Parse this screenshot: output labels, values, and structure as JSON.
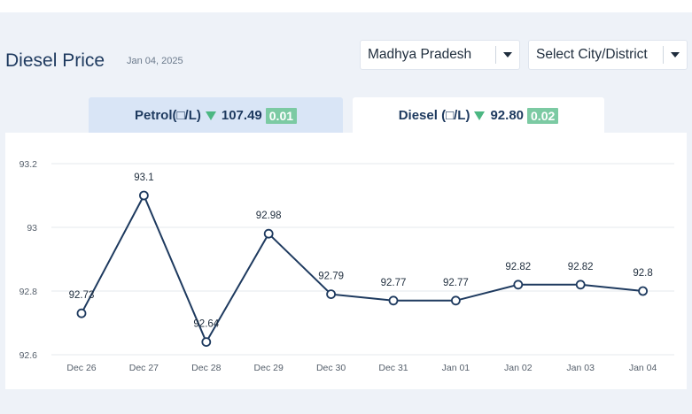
{
  "header": {
    "title": "Diesel Price",
    "date": "Jan 04, 2025",
    "state_select": {
      "value": "Madhya Pradesh"
    },
    "city_select": {
      "value": "Select City/District"
    }
  },
  "tabs": [
    {
      "label": "Petrol(□/L)",
      "price": "107.49",
      "change": "0.01",
      "active": false
    },
    {
      "label": "Diesel (□/L)",
      "price": "92.80",
      "change": "0.02",
      "active": true
    }
  ],
  "icons": {
    "trend": "down-triangle-icon",
    "dropdown": "caret-down-icon"
  },
  "colors": {
    "line": "#1e3a5f",
    "change_badge": "#7ccaa3",
    "trend_icon": "#4cb782"
  },
  "chart_data": {
    "type": "line",
    "categories": [
      "Dec 26",
      "Dec 27",
      "Dec 28",
      "Dec 29",
      "Dec 30",
      "Dec 31",
      "Jan 01",
      "Jan 02",
      "Jan 03",
      "Jan 04"
    ],
    "values": [
      92.73,
      93.1,
      92.64,
      92.98,
      92.79,
      92.77,
      92.77,
      92.82,
      92.82,
      92.8
    ],
    "data_labels": [
      "92.73",
      "93.1",
      "92.64",
      "92.98",
      "92.79",
      "92.77",
      "92.77",
      "92.82",
      "92.82",
      "92.8"
    ],
    "yticks": [
      "92.6",
      "92.8",
      "93",
      "93.2"
    ],
    "ytick_values": [
      92.6,
      92.8,
      93.0,
      93.2
    ],
    "ylim": [
      92.6,
      93.2
    ],
    "grid": true,
    "legend": "none"
  }
}
